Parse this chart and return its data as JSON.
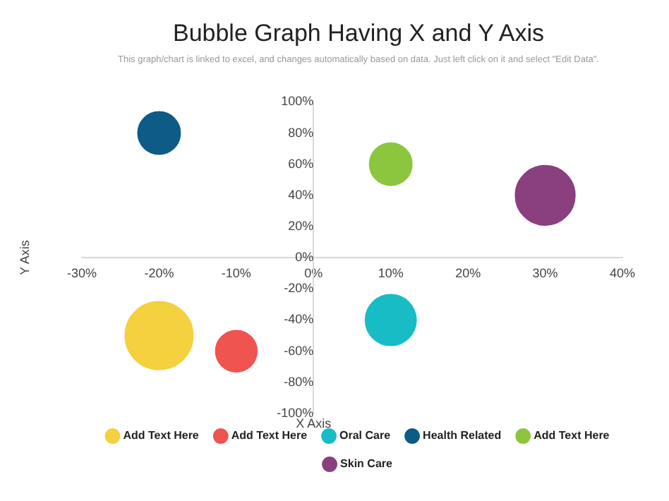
{
  "chart_data": {
    "type": "bubble",
    "title": "Bubble Graph Having X and Y Axis",
    "subtitle": "This graph/chart is linked to excel, and changes automatically based on data. Just left click on it and select \"Edit Data\".",
    "xlabel": "X Axis",
    "ylabel": "Y Axis",
    "series": [
      {
        "name": "Add Text Here",
        "color": "#f5d03f",
        "x": [
          -20
        ],
        "values": [
          -50
        ],
        "sizes": [
          1
        ]
      },
      {
        "name": "Add Text Here",
        "color": "#ef5450",
        "x": [
          -10
        ],
        "values": [
          -60
        ],
        "sizes": [
          0.37
        ]
      },
      {
        "name": "Oral Care",
        "color": "#17bcc4",
        "x": [
          10
        ],
        "values": [
          -40
        ],
        "sizes": [
          0.56
        ]
      },
      {
        "name": "Health Related",
        "color": "#0d5b86",
        "x": [
          -20
        ],
        "values": [
          80
        ],
        "sizes": [
          0.39
        ]
      },
      {
        "name": "Add Text Here",
        "color": "#8cc63e",
        "x": [
          10
        ],
        "values": [
          60
        ],
        "sizes": [
          0.39
        ]
      },
      {
        "name": "Skin Care",
        "color": "#8a3f7e",
        "x": [
          30
        ],
        "values": [
          40
        ],
        "sizes": [
          0.77
        ]
      }
    ],
    "xlim": [
      -30,
      40
    ],
    "xticks": [
      {
        "value": -30,
        "label": "-30%"
      },
      {
        "value": -20,
        "label": "-20%"
      },
      {
        "value": -10,
        "label": "-10%"
      },
      {
        "value": 0,
        "label": "0%"
      },
      {
        "value": 10,
        "label": "10%"
      },
      {
        "value": 20,
        "label": "20%"
      },
      {
        "value": 30,
        "label": "30%"
      },
      {
        "value": 40,
        "label": "40%"
      }
    ],
    "ylim": [
      -100,
      100
    ],
    "yticks": [
      {
        "value": -100,
        "label": "-100%"
      },
      {
        "value": -80,
        "label": "-80%"
      },
      {
        "value": -60,
        "label": "-60%"
      },
      {
        "value": -40,
        "label": "-40%"
      },
      {
        "value": -20,
        "label": "-20%"
      },
      {
        "value": 0,
        "label": "0%"
      },
      {
        "value": 20,
        "label": "20%"
      },
      {
        "value": 40,
        "label": "40%"
      },
      {
        "value": 60,
        "label": "60%"
      },
      {
        "value": 80,
        "label": "80%"
      },
      {
        "value": 100,
        "label": "100%"
      }
    ],
    "grid": false,
    "legend": "bottom"
  }
}
